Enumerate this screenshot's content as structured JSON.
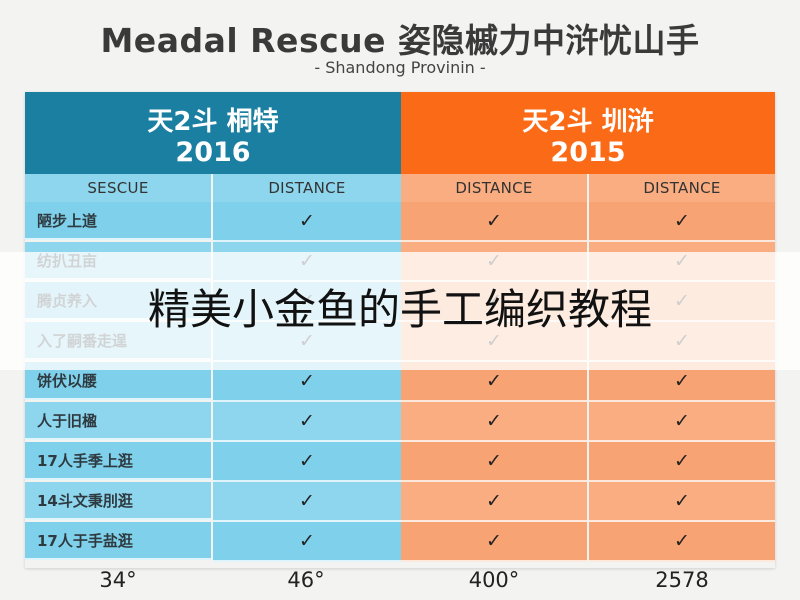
{
  "title": "Meadal Rescue 姿隐槭力中浒忧山手",
  "subtitle": "- Shandong Provinin -",
  "header_left": {
    "line1": "天2斗 桐特",
    "line2": "2016"
  },
  "header_right": {
    "line1": "天2斗 圳浒",
    "line2": "2015"
  },
  "column_headers": [
    "SESCUE",
    "DISTANCE",
    "DISTANCE",
    "DISTANCE"
  ],
  "rows": [
    {
      "label": "陋步上道"
    },
    {
      "label": "纺扒丑亩"
    },
    {
      "label": "腾贞养入"
    },
    {
      "label": "入了嗣番走逞"
    },
    {
      "label": "饼伏以腰"
    },
    {
      "label": "人于旧楹"
    },
    {
      "label": "17人手季上逛"
    },
    {
      "label": "14斗文秉刖逛"
    },
    {
      "label": "17人于手盐逛"
    }
  ],
  "check_symbol": "✓",
  "footer_values": [
    "34°",
    "46°",
    "400°",
    "2578"
  ],
  "overlay_text": "精美小金鱼的手工编织教程",
  "colors": {
    "header_left": "#1b7fa1",
    "header_right": "#fb6a16",
    "cell_blue": "#7fd0ea",
    "cell_orange": "#f7a373"
  }
}
